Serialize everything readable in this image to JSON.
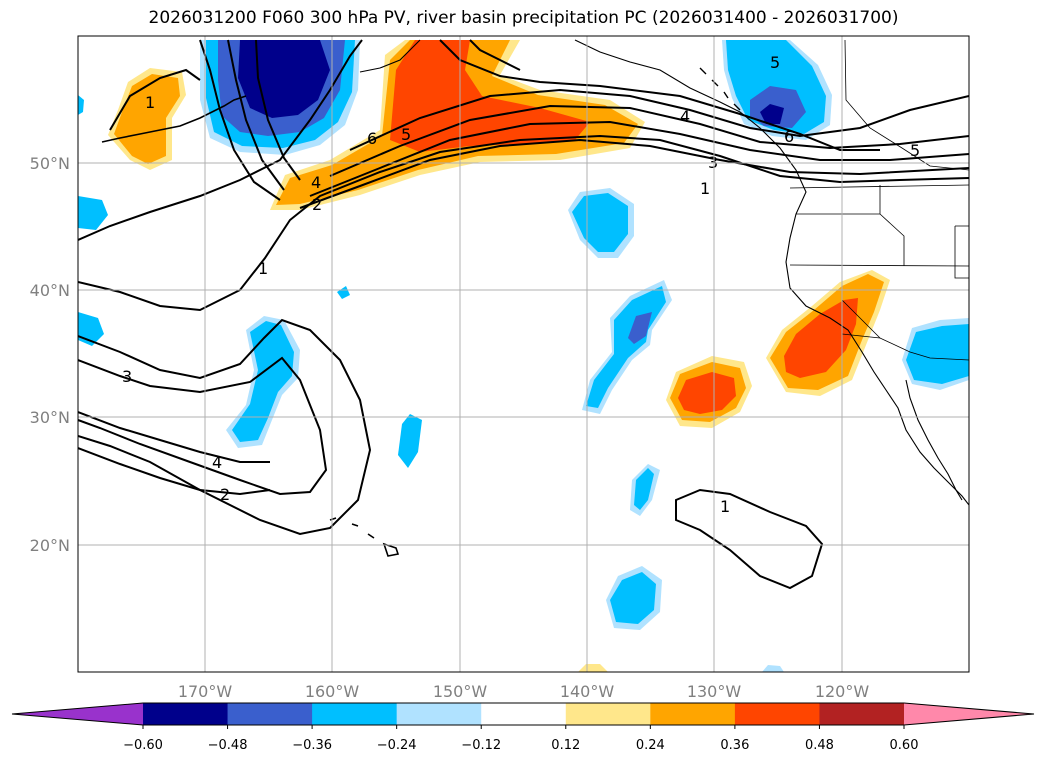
{
  "title": "2026031200 F060 300 hPa PV, river basin precipitation PC (2026031400 - 2026031700)",
  "map": {
    "lat_labels": [
      "50°N",
      "40°N",
      "30°N",
      "20°N"
    ],
    "lon_labels": [
      "170°W",
      "160°W",
      "150°W",
      "140°W",
      "130°W",
      "120°W"
    ]
  },
  "colorbar": {
    "ticks": [
      "−0.60",
      "−0.48",
      "−0.36",
      "−0.24",
      "−0.12",
      "0.12",
      "0.24",
      "0.36",
      "0.48",
      "0.60"
    ],
    "under_color": "#9932cc",
    "colors": [
      "#00008b",
      "#3a5fcd",
      "#00bfff",
      "#b0e2ff",
      "#ffffff",
      "#ffe78b",
      "#ffa500",
      "#ff4500",
      "#b22222"
    ],
    "over_color": "#ff88aa"
  },
  "contour_labels": [
    "1",
    "6",
    "5",
    "4",
    "2",
    "5",
    "4",
    "3",
    "6",
    "1",
    "5",
    "1",
    "3",
    "4",
    "2",
    "1"
  ]
}
